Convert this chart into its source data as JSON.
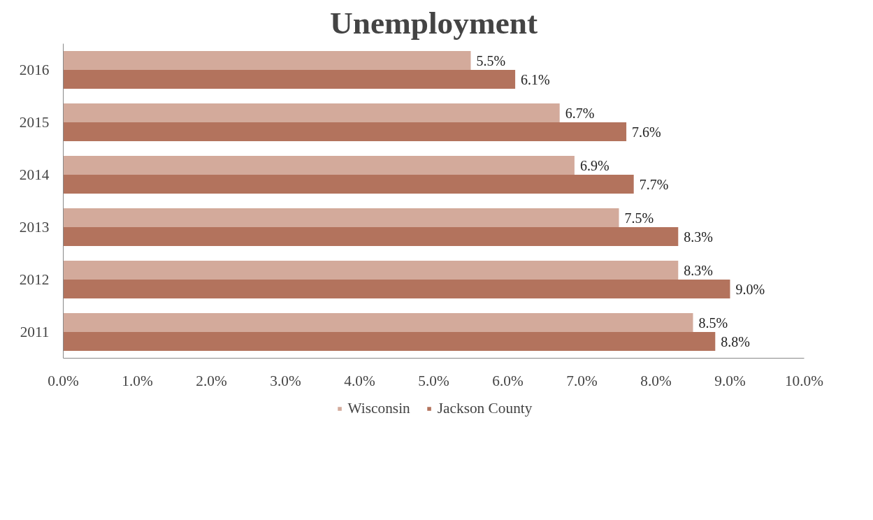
{
  "chart_data": {
    "type": "bar",
    "orientation": "horizontal",
    "title": "Unemployment",
    "categories": [
      "2016",
      "2015",
      "2014",
      "2013",
      "2012",
      "2011"
    ],
    "series": [
      {
        "name": "Wisconsin",
        "color": "#d3aa9b",
        "values": [
          5.5,
          6.7,
          6.9,
          7.5,
          8.3,
          8.5
        ],
        "value_labels": [
          "5.5%",
          "6.7%",
          "6.9%",
          "7.5%",
          "8.3%",
          "8.5%"
        ]
      },
      {
        "name": "Jackson County",
        "color": "#b3735d",
        "values": [
          6.1,
          7.6,
          7.7,
          8.3,
          9.0,
          8.8
        ],
        "value_labels": [
          "6.1%",
          "7.6%",
          "7.7%",
          "8.3%",
          "9.0%",
          "8.8%"
        ]
      }
    ],
    "xlim": [
      0,
      10
    ],
    "xticks": [
      {
        "value": 0,
        "label": "0.0%"
      },
      {
        "value": 1,
        "label": "1.0%"
      },
      {
        "value": 2,
        "label": "2.0%"
      },
      {
        "value": 3,
        "label": "3.0%"
      },
      {
        "value": 4,
        "label": "4.0%"
      },
      {
        "value": 5,
        "label": "5.0%"
      },
      {
        "value": 6,
        "label": "6.0%"
      },
      {
        "value": 7,
        "label": "7.0%"
      },
      {
        "value": 8,
        "label": "8.0%"
      },
      {
        "value": 9,
        "label": "9.0%"
      },
      {
        "value": 10,
        "label": "10.0%"
      }
    ],
    "grid": false,
    "legend": "bottom"
  }
}
